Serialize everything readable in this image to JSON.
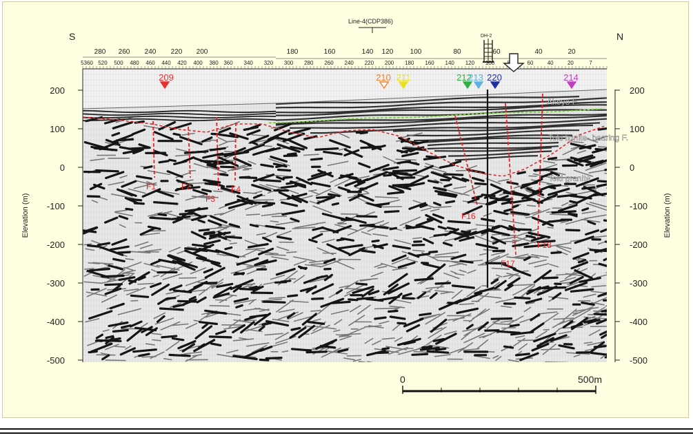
{
  "line_label": "Line-4(CDP386)",
  "direction_left": "S",
  "direction_right": "N",
  "borehole_label": "DH-2",
  "cdp_ticks_left": [
    "280",
    "260",
    "240",
    "220",
    "200"
  ],
  "cdp_ticks_right": [
    "180",
    "160",
    "140",
    "120",
    "100",
    "80",
    "60",
    "40",
    "20"
  ],
  "cdp_ticks_left_minor": [
    "5360",
    "520",
    "500",
    "480",
    "460",
    "440",
    "420",
    "400",
    "380"
  ],
  "cdp_ticks_right_minor": [
    "360",
    "340",
    "320",
    "300",
    "280",
    "260",
    "240",
    "220",
    "200",
    "180",
    "160",
    "140",
    "120",
    "100",
    "80",
    "60",
    "40",
    "20",
    "7"
  ],
  "elevation_ticks": [
    "200",
    "100",
    "0",
    "-100",
    "-200",
    "-300",
    "-400",
    "-500"
  ],
  "y_axis_label": "Elevation (m)",
  "boreholes": [
    {
      "label": "209",
      "color": "#e53030",
      "filled": true
    },
    {
      "label": "210",
      "color": "#f08030",
      "filled": false
    },
    {
      "label": "211",
      "color": "#e8e020",
      "filled": true
    },
    {
      "label": "212",
      "color": "#30b040",
      "filled": true
    },
    {
      "label": "213",
      "color": "#60b0e0",
      "filled": true
    },
    {
      "label": "220",
      "color": "#2030a0",
      "filled": true
    },
    {
      "label": "214",
      "color": "#c040c0",
      "filled": true
    }
  ],
  "formations": [
    "Akeyo F.",
    "Toki lignite- bearing F.",
    "Toki granite"
  ],
  "faults": [
    "F1",
    "F2",
    "F3",
    "F4",
    "F16",
    "F17",
    "F18"
  ],
  "scale_bar": {
    "start": "0",
    "end": "500m"
  },
  "colors": {
    "fault": "#e0282a",
    "unconformity": "#7ed040",
    "label": "#ffffff"
  }
}
